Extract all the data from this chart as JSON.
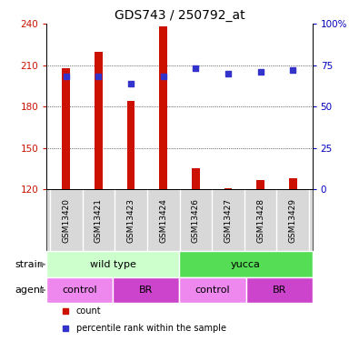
{
  "title": "GDS743 / 250792_at",
  "samples": [
    "GSM13420",
    "GSM13421",
    "GSM13423",
    "GSM13424",
    "GSM13426",
    "GSM13427",
    "GSM13428",
    "GSM13429"
  ],
  "counts": [
    208,
    220,
    184,
    238,
    135,
    121,
    127,
    128
  ],
  "percentiles": [
    68,
    68,
    64,
    68,
    73,
    70,
    71,
    72
  ],
  "ylim_left": [
    120,
    240
  ],
  "ylim_right": [
    0,
    100
  ],
  "yticks_left": [
    120,
    150,
    180,
    210,
    240
  ],
  "yticks_right": [
    0,
    25,
    50,
    75,
    100
  ],
  "bar_color": "#cc1100",
  "dot_color": "#3333cc",
  "grid_color": "#000000",
  "bg_color": "#ffffff",
  "sample_label_bg": "#d8d8d8",
  "strain_groups": [
    {
      "label": "wild type",
      "start": 0,
      "end": 4,
      "color": "#ccffcc"
    },
    {
      "label": "yucca",
      "start": 4,
      "end": 8,
      "color": "#55dd55"
    }
  ],
  "agent_groups": [
    {
      "label": "control",
      "start": 0,
      "end": 2,
      "color": "#ee88ee"
    },
    {
      "label": "BR",
      "start": 2,
      "end": 4,
      "color": "#cc44cc"
    },
    {
      "label": "control",
      "start": 4,
      "end": 6,
      "color": "#ee88ee"
    },
    {
      "label": "BR",
      "start": 6,
      "end": 8,
      "color": "#cc44cc"
    }
  ],
  "legend_items": [
    {
      "label": "count",
      "color": "#cc1100",
      "marker": "s"
    },
    {
      "label": "percentile rank within the sample",
      "color": "#3333cc",
      "marker": "s"
    }
  ],
  "title_fontsize": 10,
  "axis_color_left": "#cc1100",
  "axis_color_right": "#0000bb",
  "right_tick_labels": [
    "0",
    "25",
    "50",
    "75",
    "100%"
  ],
  "bar_width": 0.25
}
